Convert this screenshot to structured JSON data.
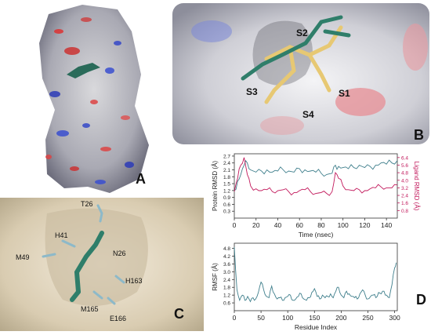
{
  "panels": {
    "a": {
      "letter": "A"
    },
    "b": {
      "letter": "B",
      "sites": [
        "S1",
        "S2",
        "S3",
        "S4"
      ]
    },
    "c": {
      "letter": "C",
      "residues": [
        "T26",
        "H41",
        "M49",
        "N26",
        "H163",
        "M165",
        "E166"
      ]
    },
    "d": {
      "letter": "D"
    }
  },
  "chart_data": [
    {
      "type": "line",
      "xlabel": "Time (nsec)",
      "ylabel": "Protein RMSD (Å)",
      "y2label": "Ligand RMSD (Å)",
      "xlim": [
        0,
        150
      ],
      "xticks": [
        0,
        20,
        40,
        60,
        80,
        100,
        120,
        140
      ],
      "ylim": [
        0,
        2.8
      ],
      "yticks": [
        "0.3",
        "0.6",
        "0.9",
        "1.2",
        "1.5",
        "1.8",
        "2.1",
        "2.4",
        "2.7"
      ],
      "y2lim": [
        0,
        6.8
      ],
      "y2ticks": [
        "0.8",
        "1.6",
        "2.4",
        "3.2",
        "4.0",
        "4.8",
        "5.6",
        "6.4"
      ],
      "series": [
        {
          "axis": "left",
          "color": "#3f7f8c",
          "x": [
            0,
            3,
            6,
            9,
            12,
            15,
            20,
            25,
            30,
            35,
            40,
            45,
            50,
            55,
            60,
            65,
            70,
            75,
            80,
            85,
            90,
            93,
            96,
            100,
            105,
            110,
            115,
            120,
            125,
            130,
            135,
            140,
            145,
            150
          ],
          "y": [
            1.2,
            1.6,
            1.9,
            2.3,
            2.4,
            2.1,
            2.0,
            2.05,
            2.1,
            2.0,
            2.05,
            2.1,
            2.05,
            2.0,
            2.15,
            2.1,
            2.05,
            2.0,
            1.95,
            1.9,
            1.95,
            2.3,
            2.25,
            2.2,
            2.15,
            2.2,
            2.3,
            2.2,
            2.25,
            2.3,
            2.4,
            2.35,
            2.4,
            2.5
          ]
        },
        {
          "axis": "right",
          "color": "#c2185b",
          "x": [
            0,
            3,
            6,
            9,
            12,
            15,
            20,
            25,
            30,
            35,
            40,
            45,
            50,
            55,
            60,
            65,
            70,
            75,
            80,
            85,
            90,
            93,
            96,
            100,
            105,
            110,
            115,
            120,
            125,
            130,
            135,
            140,
            145,
            150
          ],
          "y": [
            2.8,
            4.2,
            5.6,
            6.4,
            4.6,
            3.4,
            3.1,
            2.9,
            3.0,
            2.8,
            2.9,
            3.0,
            2.8,
            2.7,
            2.9,
            3.0,
            2.8,
            2.6,
            2.7,
            2.6,
            2.8,
            4.8,
            4.2,
            3.4,
            3.0,
            2.9,
            3.0,
            2.9,
            3.1,
            3.2,
            3.3,
            3.2,
            3.2,
            3.5
          ]
        }
      ]
    },
    {
      "type": "line",
      "xlabel": "Residue Index",
      "ylabel": "RMSF (Å)",
      "xlim": [
        0,
        305
      ],
      "xticks": [
        0,
        50,
        100,
        150,
        200,
        250,
        300
      ],
      "ylim": [
        0,
        5.2
      ],
      "yticks": [
        "0.6",
        "1.2",
        "1.8",
        "2.4",
        "3.0",
        "3.6",
        "4.2",
        "4.8"
      ],
      "series": [
        {
          "color": "#3f7f8c",
          "x": [
            0,
            5,
            10,
            15,
            20,
            25,
            30,
            35,
            40,
            45,
            50,
            55,
            60,
            65,
            70,
            75,
            80,
            85,
            90,
            95,
            100,
            105,
            110,
            115,
            120,
            125,
            130,
            135,
            140,
            145,
            150,
            155,
            160,
            165,
            170,
            175,
            180,
            185,
            190,
            195,
            200,
            205,
            210,
            215,
            220,
            225,
            230,
            235,
            240,
            245,
            250,
            255,
            260,
            265,
            270,
            275,
            280,
            285,
            290,
            295,
            300,
            303
          ],
          "y": [
            4.9,
            1.6,
            0.8,
            1.2,
            0.8,
            1.1,
            0.7,
            1.0,
            0.9,
            1.4,
            2.2,
            1.6,
            1.1,
            1.0,
            1.9,
            1.3,
            0.9,
            1.0,
            0.8,
            1.0,
            1.1,
            1.2,
            0.8,
            0.9,
            1.1,
            1.3,
            0.9,
            0.8,
            1.0,
            1.4,
            1.7,
            1.1,
            0.9,
            1.2,
            1.0,
            1.1,
            1.3,
            1.0,
            1.5,
            1.8,
            1.2,
            1.0,
            1.5,
            1.3,
            1.1,
            1.0,
            0.9,
            1.3,
            1.6,
            1.2,
            0.9,
            1.1,
            1.2,
            1.0,
            1.4,
            1.3,
            1.5,
            1.2,
            1.0,
            2.0,
            3.3,
            3.7
          ]
        }
      ]
    }
  ]
}
